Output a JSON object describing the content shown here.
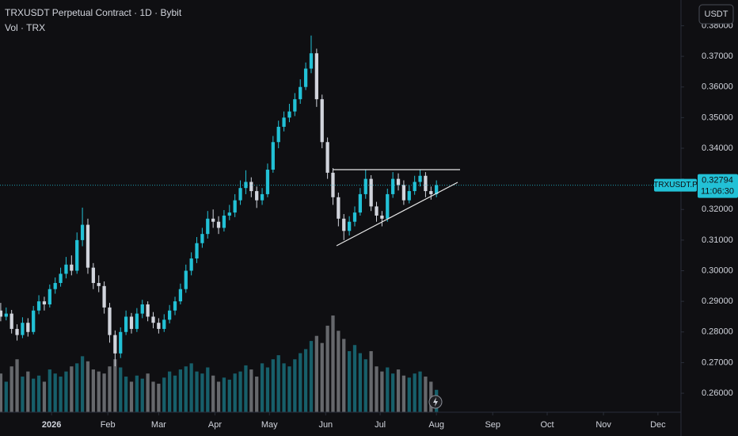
{
  "chart_data": {
    "type": "candlestick",
    "title": "TRXUSDT Perpetual Contract · 1D · Bybit",
    "subtitle": "Vol · TRX",
    "currency_button": "USDT",
    "symbol_label": "TRXUSDT.P",
    "countdown": "11:06:30",
    "up_color": "#22c1d6",
    "down_color": "#d1d4dc",
    "grid": false,
    "xlim": [
      2.6,
      377.7
    ],
    "xticks": [
      {
        "value": 31,
        "label": "2026"
      },
      {
        "value": 62,
        "label": "Feb"
      },
      {
        "value": 90,
        "label": "Mar"
      },
      {
        "value": 121,
        "label": "Apr"
      },
      {
        "value": 151,
        "label": "May"
      },
      {
        "value": 182,
        "label": "Jun"
      },
      {
        "value": 212,
        "label": "Jul"
      },
      {
        "value": 243,
        "label": "Aug"
      },
      {
        "value": 274,
        "label": "Sep"
      },
      {
        "value": 304,
        "label": "Oct"
      },
      {
        "value": 335,
        "label": "Nov"
      },
      {
        "value": 365,
        "label": "Dec"
      }
    ],
    "ylim": [
      0.2538,
      0.3884
    ],
    "yticks": [
      {
        "value": 0.26,
        "label": "0.26000"
      },
      {
        "value": 0.27,
        "label": "0.27000"
      },
      {
        "value": 0.28,
        "label": "0.28000"
      },
      {
        "value": 0.29,
        "label": "0.29000"
      },
      {
        "value": 0.3,
        "label": "0.30000"
      },
      {
        "value": 0.31,
        "label": "0.31000"
      },
      {
        "value": 0.32,
        "label": "0.32000"
      },
      {
        "value": 0.33,
        "label": "0.33000"
      },
      {
        "value": 0.34,
        "label": "0.34000"
      },
      {
        "value": 0.35,
        "label": "0.35000"
      },
      {
        "value": 0.36,
        "label": "0.36000"
      },
      {
        "value": 0.37,
        "label": "0.37000"
      },
      {
        "value": 0.38,
        "label": "0.38000"
      }
    ],
    "x": [
      3,
      6,
      9,
      12,
      15,
      18,
      21,
      24,
      27,
      30,
      33,
      36,
      39,
      42,
      45,
      48,
      51,
      54,
      57,
      60,
      63,
      66,
      69,
      72,
      75,
      78,
      81,
      84,
      87,
      90,
      93,
      96,
      99,
      102,
      105,
      108,
      111,
      114,
      117,
      120,
      123,
      126,
      129,
      132,
      135,
      138,
      141,
      144,
      147,
      150,
      153,
      156,
      159,
      162,
      165,
      168,
      171,
      174,
      177,
      180,
      183,
      186,
      189,
      192,
      195,
      198,
      201,
      204,
      207,
      210,
      213,
      216,
      219,
      222,
      225,
      228,
      231,
      234,
      237,
      240,
      243
    ],
    "open": [
      0.287,
      0.285,
      0.286,
      0.281,
      0.279,
      0.283,
      0.28,
      0.287,
      0.29,
      0.289,
      0.294,
      0.296,
      0.299,
      0.302,
      0.3,
      0.31,
      0.315,
      0.301,
      0.296,
      0.295,
      0.288,
      0.279,
      0.273,
      0.28,
      0.285,
      0.281,
      0.286,
      0.289,
      0.285,
      0.283,
      0.281,
      0.284,
      0.287,
      0.29,
      0.294,
      0.3,
      0.304,
      0.309,
      0.312,
      0.317,
      0.316,
      0.314,
      0.318,
      0.319,
      0.323,
      0.327,
      0.329,
      0.326,
      0.323,
      0.325,
      0.333,
      0.342,
      0.347,
      0.35,
      0.352,
      0.356,
      0.36,
      0.366,
      0.371,
      0.356,
      0.342,
      0.332,
      0.324,
      0.317,
      0.313,
      0.316,
      0.319,
      0.325,
      0.33,
      0.321,
      0.318,
      0.317,
      0.325,
      0.33,
      0.328,
      0.323,
      0.326,
      0.329,
      0.331,
      0.326,
      0.325
    ],
    "high": [
      0.2895,
      0.288,
      0.2872,
      0.2825,
      0.2848,
      0.2845,
      0.2885,
      0.292,
      0.2915,
      0.2955,
      0.2978,
      0.301,
      0.3045,
      0.305,
      0.3125,
      0.3206,
      0.317,
      0.3025,
      0.2985,
      0.2965,
      0.2895,
      0.2805,
      0.2815,
      0.287,
      0.2862,
      0.2878,
      0.2905,
      0.29,
      0.2865,
      0.2845,
      0.2858,
      0.2888,
      0.2915,
      0.2958,
      0.302,
      0.306,
      0.311,
      0.314,
      0.3195,
      0.32,
      0.3178,
      0.3198,
      0.3215,
      0.325,
      0.3295,
      0.3328,
      0.3305,
      0.3275,
      0.327,
      0.335,
      0.344,
      0.349,
      0.352,
      0.3545,
      0.358,
      0.3625,
      0.368,
      0.3768,
      0.3725,
      0.3575,
      0.3435,
      0.3335,
      0.3255,
      0.3185,
      0.3178,
      0.321,
      0.327,
      0.333,
      0.3312,
      0.3225,
      0.3195,
      0.3268,
      0.3322,
      0.3318,
      0.3295,
      0.3278,
      0.331,
      0.333,
      0.3322,
      0.3275,
      0.3295
    ],
    "low": [
      0.2835,
      0.2838,
      0.2795,
      0.2772,
      0.278,
      0.2785,
      0.2792,
      0.2858,
      0.287,
      0.288,
      0.2925,
      0.2948,
      0.2975,
      0.2985,
      0.299,
      0.308,
      0.299,
      0.294,
      0.293,
      0.286,
      0.2765,
      0.2688,
      0.2715,
      0.279,
      0.2795,
      0.28,
      0.2845,
      0.2835,
      0.2812,
      0.2795,
      0.28,
      0.2828,
      0.2855,
      0.289,
      0.2928,
      0.2985,
      0.3025,
      0.3075,
      0.3105,
      0.314,
      0.312,
      0.3128,
      0.3165,
      0.3175,
      0.3215,
      0.325,
      0.324,
      0.3205,
      0.3215,
      0.324,
      0.332,
      0.34,
      0.3455,
      0.3485,
      0.3505,
      0.3545,
      0.359,
      0.3645,
      0.3535,
      0.34,
      0.33,
      0.3215,
      0.3145,
      0.31,
      0.3115,
      0.3145,
      0.318,
      0.3235,
      0.3195,
      0.316,
      0.3145,
      0.316,
      0.3238,
      0.3262,
      0.3215,
      0.322,
      0.3248,
      0.3275,
      0.324,
      0.3232,
      0.324
    ],
    "close": [
      0.285,
      0.286,
      0.281,
      0.279,
      0.283,
      0.28,
      0.287,
      0.29,
      0.289,
      0.294,
      0.296,
      0.299,
      0.302,
      0.3,
      0.31,
      0.315,
      0.301,
      0.296,
      0.295,
      0.288,
      0.279,
      0.273,
      0.28,
      0.285,
      0.281,
      0.286,
      0.289,
      0.285,
      0.283,
      0.281,
      0.284,
      0.287,
      0.29,
      0.294,
      0.3,
      0.304,
      0.309,
      0.312,
      0.317,
      0.316,
      0.314,
      0.318,
      0.319,
      0.323,
      0.327,
      0.329,
      0.326,
      0.323,
      0.325,
      0.333,
      0.342,
      0.347,
      0.35,
      0.352,
      0.356,
      0.36,
      0.366,
      0.371,
      0.356,
      0.342,
      0.332,
      0.324,
      0.317,
      0.313,
      0.316,
      0.319,
      0.325,
      0.33,
      0.321,
      0.318,
      0.317,
      0.325,
      0.33,
      0.328,
      0.323,
      0.326,
      0.329,
      0.331,
      0.326,
      0.325,
      0.32794
    ],
    "volume": [
      38,
      30,
      45,
      52,
      35,
      40,
      33,
      36,
      30,
      42,
      38,
      35,
      40,
      45,
      48,
      55,
      50,
      42,
      40,
      38,
      45,
      52,
      44,
      35,
      30,
      36,
      33,
      38,
      30,
      28,
      34,
      40,
      36,
      42,
      45,
      48,
      40,
      38,
      44,
      36,
      30,
      34,
      32,
      38,
      40,
      46,
      42,
      35,
      48,
      44,
      52,
      56,
      48,
      45,
      52,
      58,
      62,
      70,
      75,
      68,
      85,
      95,
      80,
      72,
      60,
      66,
      58,
      52,
      60,
      45,
      40,
      44,
      38,
      42,
      36,
      34,
      38,
      40,
      35,
      30,
      22
    ]
  }
}
